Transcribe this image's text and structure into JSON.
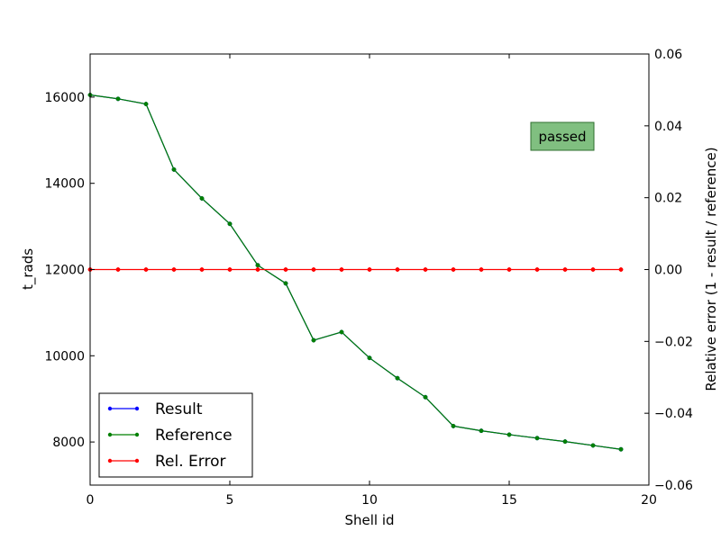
{
  "chart_data": {
    "type": "line",
    "x": [
      0,
      1,
      2,
      3,
      4,
      5,
      6,
      7,
      8,
      9,
      10,
      11,
      12,
      13,
      14,
      15,
      16,
      17,
      18,
      19
    ],
    "series": [
      {
        "name": "Result",
        "axis": "left",
        "color": "#0000ff",
        "values": [
          16050,
          15960,
          15840,
          14320,
          13650,
          13060,
          12100,
          11680,
          10360,
          10550,
          9950,
          9480,
          9040,
          8370,
          8260,
          8170,
          8090,
          8010,
          7920,
          7830
        ]
      },
      {
        "name": "Reference",
        "axis": "left",
        "color": "#008000",
        "values": [
          16050,
          15960,
          15840,
          14320,
          13650,
          13060,
          12100,
          11680,
          10360,
          10550,
          9950,
          9480,
          9040,
          8370,
          8260,
          8170,
          8090,
          8010,
          7920,
          7830
        ]
      },
      {
        "name": "Rel. Error",
        "axis": "right",
        "color": "#ff0000",
        "values": [
          0,
          0,
          0,
          0,
          0,
          0,
          0,
          0,
          0,
          0,
          0,
          0,
          0,
          0,
          0,
          0,
          0,
          0,
          0,
          0
        ]
      }
    ],
    "xlabel": "Shell id",
    "ylabel": "t_rads",
    "y2label": "Relative error (1 - result / reference)",
    "xlim": [
      0,
      20
    ],
    "ylim": [
      7000,
      17000
    ],
    "y2lim": [
      -0.06,
      0.06
    ],
    "xticks": [
      0,
      5,
      10,
      15,
      20
    ],
    "yticks": [
      8000,
      10000,
      12000,
      14000,
      16000
    ],
    "y2ticks": [
      -0.06,
      -0.04,
      -0.02,
      0.0,
      0.02,
      0.04,
      0.06
    ],
    "xtick_labels": [
      "0",
      "5",
      "10",
      "15",
      "20"
    ],
    "ytick_labels": [
      "8000",
      "10000",
      "12000",
      "14000",
      "16000"
    ],
    "y2tick_labels": [
      "−0.06",
      "−0.04",
      "−0.02",
      "0.00",
      "0.02",
      "0.04",
      "0.06"
    ],
    "legend_position": "lower-left",
    "grid": false,
    "annotation": {
      "text": "passed",
      "background": "#80bf80"
    }
  }
}
